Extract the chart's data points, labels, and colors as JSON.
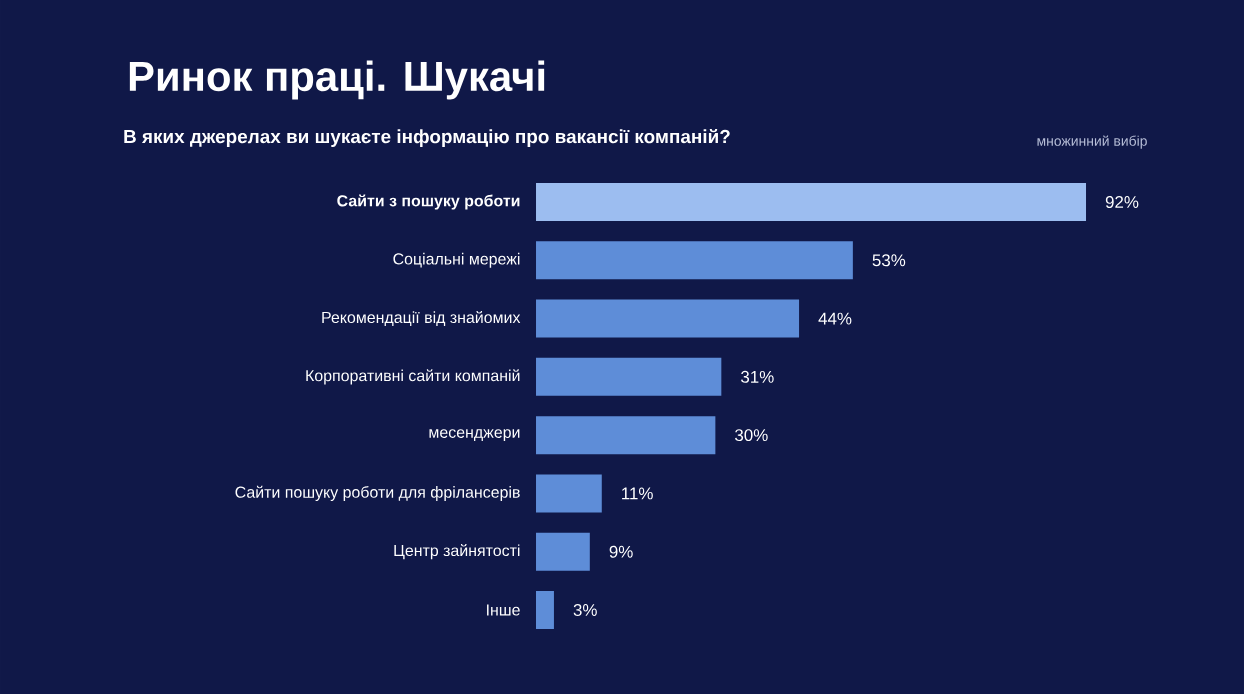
{
  "chart_data": {
    "type": "bar",
    "orientation": "horizontal",
    "title": "Ринок праці. Шукачі",
    "subtitle": "В яких джерелах ви шукаєте інформацію про вакансії компаній?",
    "annotations": [
      "множинний вибір"
    ],
    "categories": [
      "Сайти з пошуку роботи",
      "Соціальні мережі",
      "Рекомендації від знайомих",
      "Корпоративні сайти компаній",
      "месенджери",
      "Сайти пошуку роботи для фрілансерів",
      "Центр зайнятості",
      "Інше"
    ],
    "values": [
      92,
      53,
      44,
      31,
      30,
      11,
      9,
      3
    ],
    "colors": [
      "#9cbdf0",
      "#5e8dd8",
      "#5e8dd8",
      "#5e8dd8",
      "#5e8dd8",
      "#5e8dd8",
      "#5e8dd8",
      "#5e8dd8"
    ],
    "value_labels": [
      "92%",
      "53%",
      "44%",
      "31%",
      "30%",
      "11%",
      "9%",
      "3%"
    ],
    "tick_labels": "y"
  }
}
